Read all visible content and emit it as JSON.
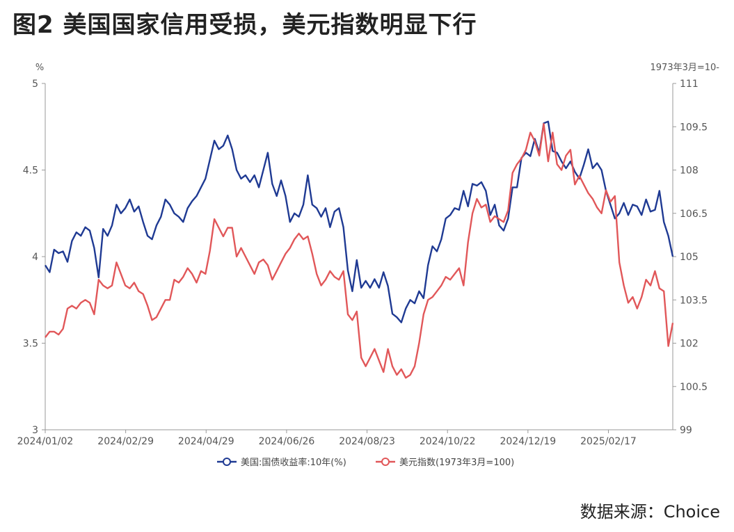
{
  "figure_title": "图2  美国国家信用受损，美元指数明显下行",
  "source": "数据来源：Choice",
  "chart_data": {
    "type": "line",
    "title": "",
    "x_tick_labels": [
      "2024/01/02",
      "2024/02/29",
      "2024/04/29",
      "2024/06/26",
      "2024/08/23",
      "2024/10/22",
      "2024/12/19",
      "2025/02/17"
    ],
    "left_axis": {
      "unit": "%",
      "min": 3,
      "max": 5,
      "ticks": [
        "3",
        "3.5",
        "4",
        "4.5",
        "5"
      ]
    },
    "right_axis": {
      "unit": "1973年3月=10-",
      "min": 99,
      "max": 111,
      "ticks": [
        "99",
        "100.5",
        "102",
        "103.5",
        "105",
        "106.5",
        "108",
        "109.5",
        "111"
      ]
    },
    "legend_position": "bottom",
    "series": [
      {
        "name": "美国:国债收益率:10年(%)",
        "axis": "left",
        "color": "#1f3a93",
        "points": [
          [
            0,
            3.95
          ],
          [
            1,
            3.91
          ],
          [
            2,
            4.04
          ],
          [
            3,
            4.02
          ],
          [
            4,
            4.03
          ],
          [
            5,
            3.97
          ],
          [
            6,
            4.09
          ],
          [
            7,
            4.14
          ],
          [
            8,
            4.12
          ],
          [
            9,
            4.17
          ],
          [
            10,
            4.15
          ],
          [
            11,
            4.05
          ],
          [
            12,
            3.88
          ],
          [
            13,
            4.16
          ],
          [
            14,
            4.12
          ],
          [
            15,
            4.18
          ],
          [
            16,
            4.3
          ],
          [
            17,
            4.25
          ],
          [
            18,
            4.28
          ],
          [
            19,
            4.33
          ],
          [
            20,
            4.26
          ],
          [
            21,
            4.29
          ],
          [
            22,
            4.2
          ],
          [
            23,
            4.12
          ],
          [
            24,
            4.1
          ],
          [
            25,
            4.18
          ],
          [
            26,
            4.23
          ],
          [
            27,
            4.33
          ],
          [
            28,
            4.3
          ],
          [
            29,
            4.25
          ],
          [
            30,
            4.23
          ],
          [
            31,
            4.2
          ],
          [
            32,
            4.28
          ],
          [
            33,
            4.32
          ],
          [
            34,
            4.35
          ],
          [
            35,
            4.4
          ],
          [
            36,
            4.45
          ],
          [
            37,
            4.56
          ],
          [
            38,
            4.67
          ],
          [
            39,
            4.62
          ],
          [
            40,
            4.64
          ],
          [
            41,
            4.7
          ],
          [
            42,
            4.62
          ],
          [
            43,
            4.5
          ],
          [
            44,
            4.45
          ],
          [
            45,
            4.47
          ],
          [
            46,
            4.43
          ],
          [
            47,
            4.47
          ],
          [
            48,
            4.4
          ],
          [
            49,
            4.5
          ],
          [
            50,
            4.6
          ],
          [
            51,
            4.42
          ],
          [
            52,
            4.35
          ],
          [
            53,
            4.44
          ],
          [
            54,
            4.35
          ],
          [
            55,
            4.2
          ],
          [
            56,
            4.25
          ],
          [
            57,
            4.23
          ],
          [
            58,
            4.3
          ],
          [
            59,
            4.47
          ],
          [
            60,
            4.3
          ],
          [
            61,
            4.28
          ],
          [
            62,
            4.23
          ],
          [
            63,
            4.28
          ],
          [
            64,
            4.17
          ],
          [
            65,
            4.26
          ],
          [
            66,
            4.28
          ],
          [
            67,
            4.17
          ],
          [
            68,
            3.92
          ],
          [
            69,
            3.8
          ],
          [
            70,
            3.98
          ],
          [
            71,
            3.82
          ],
          [
            72,
            3.86
          ],
          [
            73,
            3.82
          ],
          [
            74,
            3.87
          ],
          [
            75,
            3.82
          ],
          [
            76,
            3.91
          ],
          [
            77,
            3.83
          ],
          [
            78,
            3.67
          ],
          [
            79,
            3.65
          ],
          [
            80,
            3.62
          ],
          [
            81,
            3.7
          ],
          [
            82,
            3.75
          ],
          [
            83,
            3.73
          ],
          [
            84,
            3.8
          ],
          [
            85,
            3.76
          ],
          [
            86,
            3.95
          ],
          [
            87,
            4.06
          ],
          [
            88,
            4.03
          ],
          [
            89,
            4.1
          ],
          [
            90,
            4.22
          ],
          [
            91,
            4.24
          ],
          [
            92,
            4.28
          ],
          [
            93,
            4.27
          ],
          [
            94,
            4.38
          ],
          [
            95,
            4.29
          ],
          [
            96,
            4.42
          ],
          [
            97,
            4.41
          ],
          [
            98,
            4.43
          ],
          [
            99,
            4.38
          ],
          [
            100,
            4.24
          ],
          [
            101,
            4.3
          ],
          [
            102,
            4.18
          ],
          [
            103,
            4.15
          ],
          [
            104,
            4.22
          ],
          [
            105,
            4.4
          ],
          [
            106,
            4.4
          ],
          [
            107,
            4.57
          ],
          [
            108,
            4.6
          ],
          [
            109,
            4.58
          ],
          [
            110,
            4.68
          ],
          [
            111,
            4.6
          ],
          [
            112,
            4.77
          ],
          [
            113,
            4.78
          ],
          [
            114,
            4.61
          ],
          [
            115,
            4.6
          ],
          [
            116,
            4.55
          ],
          [
            117,
            4.51
          ],
          [
            118,
            4.55
          ],
          [
            119,
            4.49
          ],
          [
            120,
            4.45
          ],
          [
            121,
            4.53
          ],
          [
            122,
            4.62
          ],
          [
            123,
            4.51
          ],
          [
            124,
            4.54
          ],
          [
            125,
            4.5
          ],
          [
            126,
            4.38
          ],
          [
            127,
            4.3
          ],
          [
            128,
            4.22
          ],
          [
            129,
            4.25
          ],
          [
            130,
            4.31
          ],
          [
            131,
            4.24
          ],
          [
            132,
            4.3
          ],
          [
            133,
            4.29
          ],
          [
            134,
            4.24
          ],
          [
            135,
            4.33
          ],
          [
            136,
            4.26
          ],
          [
            137,
            4.27
          ],
          [
            138,
            4.38
          ],
          [
            139,
            4.2
          ],
          [
            140,
            4.12
          ],
          [
            141,
            4.0
          ]
        ]
      },
      {
        "name": "美元指数(1973年3月=100)",
        "axis": "right",
        "color": "#e15759",
        "points": [
          [
            0,
            102.2
          ],
          [
            1,
            102.4
          ],
          [
            2,
            102.4
          ],
          [
            3,
            102.3
          ],
          [
            4,
            102.5
          ],
          [
            5,
            103.2
          ],
          [
            6,
            103.3
          ],
          [
            7,
            103.2
          ],
          [
            8,
            103.4
          ],
          [
            9,
            103.5
          ],
          [
            10,
            103.4
          ],
          [
            11,
            103.0
          ],
          [
            12,
            104.2
          ],
          [
            13,
            104.0
          ],
          [
            14,
            103.9
          ],
          [
            15,
            104.0
          ],
          [
            16,
            104.8
          ],
          [
            17,
            104.4
          ],
          [
            18,
            104.0
          ],
          [
            19,
            103.9
          ],
          [
            20,
            104.1
          ],
          [
            21,
            103.8
          ],
          [
            22,
            103.7
          ],
          [
            23,
            103.3
          ],
          [
            24,
            102.8
          ],
          [
            25,
            102.9
          ],
          [
            26,
            103.2
          ],
          [
            27,
            103.5
          ],
          [
            28,
            103.5
          ],
          [
            29,
            104.2
          ],
          [
            30,
            104.1
          ],
          [
            31,
            104.3
          ],
          [
            32,
            104.6
          ],
          [
            33,
            104.4
          ],
          [
            34,
            104.1
          ],
          [
            35,
            104.5
          ],
          [
            36,
            104.4
          ],
          [
            37,
            105.2
          ],
          [
            38,
            106.3
          ],
          [
            39,
            106.0
          ],
          [
            40,
            105.7
          ],
          [
            41,
            106.0
          ],
          [
            42,
            106.0
          ],
          [
            43,
            105.0
          ],
          [
            44,
            105.3
          ],
          [
            45,
            105.0
          ],
          [
            46,
            104.7
          ],
          [
            47,
            104.4
          ],
          [
            48,
            104.8
          ],
          [
            49,
            104.9
          ],
          [
            50,
            104.7
          ],
          [
            51,
            104.2
          ],
          [
            52,
            104.5
          ],
          [
            53,
            104.8
          ],
          [
            54,
            105.1
          ],
          [
            55,
            105.3
          ],
          [
            56,
            105.6
          ],
          [
            57,
            105.8
          ],
          [
            58,
            105.6
          ],
          [
            59,
            105.7
          ],
          [
            60,
            105.1
          ],
          [
            61,
            104.4
          ],
          [
            62,
            104.0
          ],
          [
            63,
            104.2
          ],
          [
            64,
            104.5
          ],
          [
            65,
            104.3
          ],
          [
            66,
            104.2
          ],
          [
            67,
            104.5
          ],
          [
            68,
            103.0
          ],
          [
            69,
            102.8
          ],
          [
            70,
            103.1
          ],
          [
            71,
            101.5
          ],
          [
            72,
            101.2
          ],
          [
            73,
            101.5
          ],
          [
            74,
            101.8
          ],
          [
            75,
            101.4
          ],
          [
            76,
            101.0
          ],
          [
            77,
            101.8
          ],
          [
            78,
            101.2
          ],
          [
            79,
            100.9
          ],
          [
            80,
            101.1
          ],
          [
            81,
            100.8
          ],
          [
            82,
            100.9
          ],
          [
            83,
            101.2
          ],
          [
            84,
            102.0
          ],
          [
            85,
            103.0
          ],
          [
            86,
            103.5
          ],
          [
            87,
            103.6
          ],
          [
            88,
            103.8
          ],
          [
            89,
            104.0
          ],
          [
            90,
            104.3
          ],
          [
            91,
            104.2
          ],
          [
            92,
            104.4
          ],
          [
            93,
            104.6
          ],
          [
            94,
            104.0
          ],
          [
            95,
            105.5
          ],
          [
            96,
            106.5
          ],
          [
            97,
            107.0
          ],
          [
            98,
            106.7
          ],
          [
            99,
            106.8
          ],
          [
            100,
            106.2
          ],
          [
            101,
            106.4
          ],
          [
            102,
            106.3
          ],
          [
            103,
            106.2
          ],
          [
            104,
            106.6
          ],
          [
            105,
            107.9
          ],
          [
            106,
            108.2
          ],
          [
            107,
            108.4
          ],
          [
            108,
            108.7
          ],
          [
            109,
            109.3
          ],
          [
            110,
            109.0
          ],
          [
            111,
            108.5
          ],
          [
            112,
            109.6
          ],
          [
            113,
            108.3
          ],
          [
            114,
            109.3
          ],
          [
            115,
            108.2
          ],
          [
            116,
            108.0
          ],
          [
            117,
            108.5
          ],
          [
            118,
            108.7
          ],
          [
            119,
            107.5
          ],
          [
            120,
            107.8
          ],
          [
            121,
            107.5
          ],
          [
            122,
            107.2
          ],
          [
            123,
            107.0
          ],
          [
            124,
            106.7
          ],
          [
            125,
            106.5
          ],
          [
            126,
            107.3
          ],
          [
            127,
            106.9
          ],
          [
            128,
            107.1
          ],
          [
            129,
            104.8
          ],
          [
            130,
            104.0
          ],
          [
            131,
            103.4
          ],
          [
            132,
            103.6
          ],
          [
            133,
            103.2
          ],
          [
            134,
            103.6
          ],
          [
            135,
            104.2
          ],
          [
            136,
            104.0
          ],
          [
            137,
            104.5
          ],
          [
            138,
            103.9
          ],
          [
            139,
            103.8
          ],
          [
            140,
            101.9
          ],
          [
            141,
            102.7
          ]
        ]
      }
    ]
  }
}
